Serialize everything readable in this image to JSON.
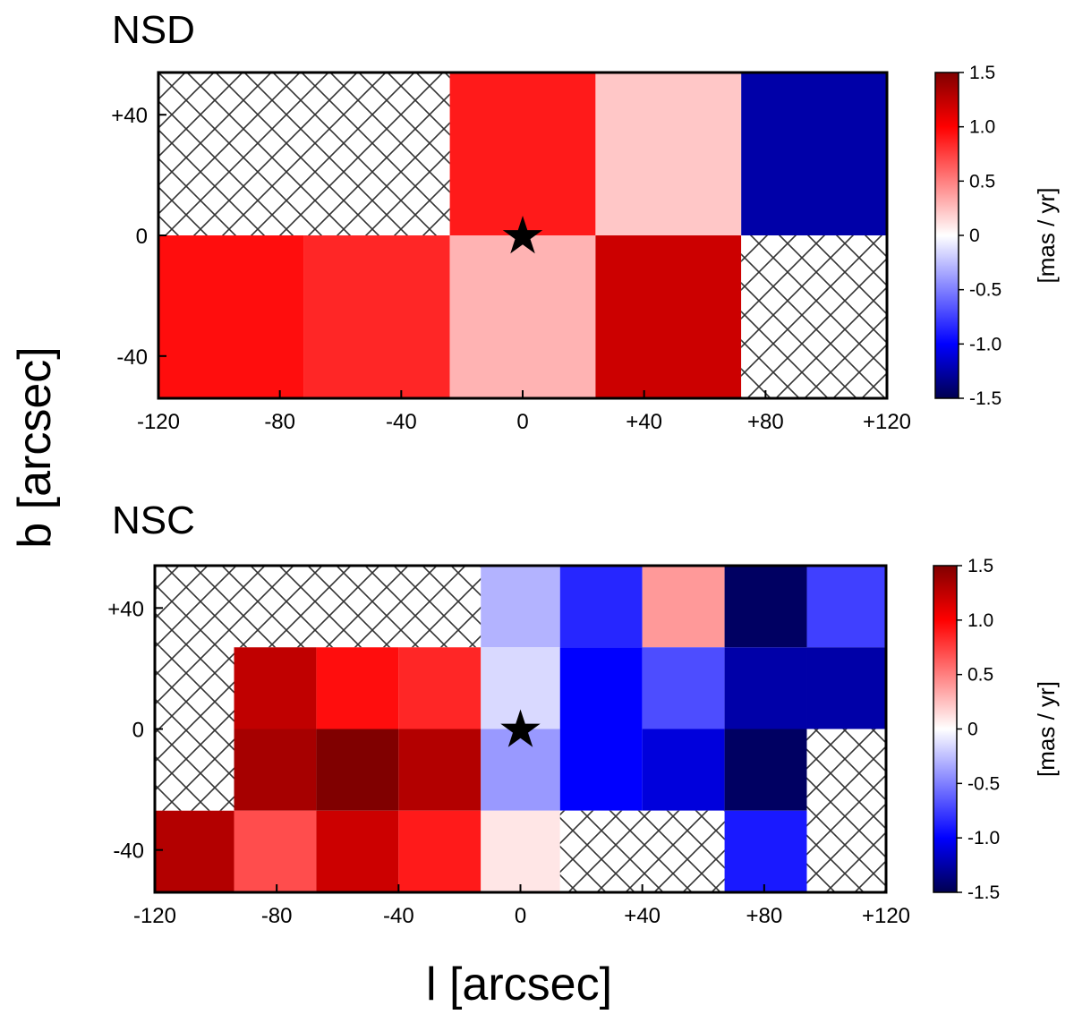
{
  "figure": {
    "xlabel": "l [arcsec]",
    "ylabel": "b [arcsec]"
  },
  "chart_data": [
    {
      "type": "heatmap",
      "title": "NSD",
      "xlabel": "l [arcsec]",
      "ylabel": "b [arcsec]",
      "xlim": [
        -120,
        120
      ],
      "ylim": [
        -54,
        54
      ],
      "xticks": [
        -120,
        -80,
        -40,
        0,
        40,
        80,
        120
      ],
      "xtick_labels": [
        "-120",
        "-80",
        "-40",
        "0",
        "+40",
        "+80",
        "+120"
      ],
      "yticks": [
        40,
        0,
        -40
      ],
      "ytick_labels": [
        "+40",
        "0",
        "-40"
      ],
      "colorbar": {
        "label": "[mas / yr]",
        "range": [
          -1.5,
          1.5
        ],
        "ticks": [
          1.5,
          1.0,
          0.5,
          0,
          -0.5,
          -1.0,
          -1.5
        ],
        "tick_labels": [
          "1.5",
          "1.0",
          "0.5",
          "0",
          "-0.5",
          "-1.0",
          "-1.5"
        ]
      },
      "marker": {
        "symbol": "★",
        "l": 0,
        "b": 0
      },
      "cells": [
        {
          "l0": -120,
          "l1": -24,
          "b0": 0,
          "b1": 54,
          "value": null
        },
        {
          "l0": -24,
          "l1": 24,
          "b0": 0,
          "b1": 54,
          "value": 0.9
        },
        {
          "l0": 24,
          "l1": 72,
          "b0": 0,
          "b1": 54,
          "value": 0.22
        },
        {
          "l0": 72,
          "l1": 120,
          "b0": 0,
          "b1": 54,
          "value": -1.25
        },
        {
          "l0": -120,
          "l1": -72,
          "b0": -54,
          "b1": 0,
          "value": 0.95
        },
        {
          "l0": -72,
          "l1": -24,
          "b0": -54,
          "b1": 0,
          "value": 0.85
        },
        {
          "l0": -24,
          "l1": 24,
          "b0": -54,
          "b1": 0,
          "value": 0.3
        },
        {
          "l0": 24,
          "l1": 72,
          "b0": -54,
          "b1": 0,
          "value": 1.2
        },
        {
          "l0": 72,
          "l1": 120,
          "b0": -54,
          "b1": 0,
          "value": null
        }
      ]
    },
    {
      "type": "heatmap",
      "title": "NSC",
      "xlabel": "l [arcsec]",
      "ylabel": "b [arcsec]",
      "xlim": [
        -120,
        120
      ],
      "ylim": [
        -54,
        54
      ],
      "xticks": [
        -120,
        -80,
        -40,
        0,
        40,
        80,
        120
      ],
      "xtick_labels": [
        "-120",
        "-80",
        "-40",
        "0",
        "+40",
        "+80",
        "+120"
      ],
      "yticks": [
        40,
        0,
        -40
      ],
      "ytick_labels": [
        "+40",
        "0",
        "-40"
      ],
      "colorbar": {
        "label": "[mas / yr]",
        "range": [
          -1.5,
          1.5
        ],
        "ticks": [
          1.5,
          1.0,
          0.5,
          0,
          -0.5,
          -1.0,
          -1.5
        ],
        "tick_labels": [
          "1.5",
          "1.0",
          "0.5",
          "0",
          "-0.5",
          "-1.0",
          "-1.5"
        ]
      },
      "marker": {
        "symbol": "★",
        "l": 0,
        "b": 0
      },
      "cells": [
        {
          "l0": -120,
          "l1": -13,
          "b0": 27,
          "b1": 54,
          "value": null
        },
        {
          "l0": -13,
          "l1": 13,
          "b0": 27,
          "b1": 54,
          "value": -0.3
        },
        {
          "l0": 13,
          "l1": 40,
          "b0": 27,
          "b1": 54,
          "value": -0.85
        },
        {
          "l0": 40,
          "l1": 67,
          "b0": 27,
          "b1": 54,
          "value": 0.4
        },
        {
          "l0": 67,
          "l1": 94,
          "b0": 27,
          "b1": 54,
          "value": -1.45
        },
        {
          "l0": 94,
          "l1": 120,
          "b0": 27,
          "b1": 54,
          "value": -0.75
        },
        {
          "l0": -120,
          "l1": -94,
          "b0": -27,
          "b1": 27,
          "value": null
        },
        {
          "l0": -94,
          "l1": -67,
          "b0": 0,
          "b1": 27,
          "value": 1.25
        },
        {
          "l0": -67,
          "l1": -40,
          "b0": 0,
          "b1": 27,
          "value": 0.95
        },
        {
          "l0": -40,
          "l1": -13,
          "b0": 0,
          "b1": 27,
          "value": 0.85
        },
        {
          "l0": -13,
          "l1": 13,
          "b0": 0,
          "b1": 27,
          "value": -0.15
        },
        {
          "l0": 13,
          "l1": 40,
          "b0": 0,
          "b1": 27,
          "value": -1.0
        },
        {
          "l0": 40,
          "l1": 67,
          "b0": 0,
          "b1": 27,
          "value": -0.7
        },
        {
          "l0": 67,
          "l1": 94,
          "b0": 0,
          "b1": 27,
          "value": -1.25
        },
        {
          "l0": 94,
          "l1": 120,
          "b0": 0,
          "b1": 27,
          "value": -1.25
        },
        {
          "l0": -94,
          "l1": -67,
          "b0": -27,
          "b1": 0,
          "value": 1.35
        },
        {
          "l0": -67,
          "l1": -40,
          "b0": -27,
          "b1": 0,
          "value": 1.5
        },
        {
          "l0": -40,
          "l1": -13,
          "b0": -27,
          "b1": 0,
          "value": 1.3
        },
        {
          "l0": -13,
          "l1": 13,
          "b0": -27,
          "b1": 0,
          "value": -0.4
        },
        {
          "l0": 13,
          "l1": 40,
          "b0": -27,
          "b1": 0,
          "value": -1.0
        },
        {
          "l0": 40,
          "l1": 67,
          "b0": -27,
          "b1": 0,
          "value": -1.1
        },
        {
          "l0": 67,
          "l1": 94,
          "b0": -27,
          "b1": 0,
          "value": -1.45
        },
        {
          "l0": 94,
          "l1": 120,
          "b0": -27,
          "b1": 0,
          "value": null
        },
        {
          "l0": -120,
          "l1": -94,
          "b0": -54,
          "b1": -27,
          "value": 1.3
        },
        {
          "l0": -94,
          "l1": -67,
          "b0": -54,
          "b1": -27,
          "value": 0.7
        },
        {
          "l0": -67,
          "l1": -40,
          "b0": -54,
          "b1": -27,
          "value": 1.2
        },
        {
          "l0": -40,
          "l1": -13,
          "b0": -54,
          "b1": -27,
          "value": 0.9
        },
        {
          "l0": -13,
          "l1": 13,
          "b0": -54,
          "b1": -27,
          "value": 0.1
        },
        {
          "l0": 13,
          "l1": 67,
          "b0": -54,
          "b1": -27,
          "value": null
        },
        {
          "l0": 67,
          "l1": 94,
          "b0": -54,
          "b1": -27,
          "value": -0.9
        },
        {
          "l0": 94,
          "l1": 120,
          "b0": -54,
          "b1": -27,
          "value": null
        }
      ]
    }
  ]
}
